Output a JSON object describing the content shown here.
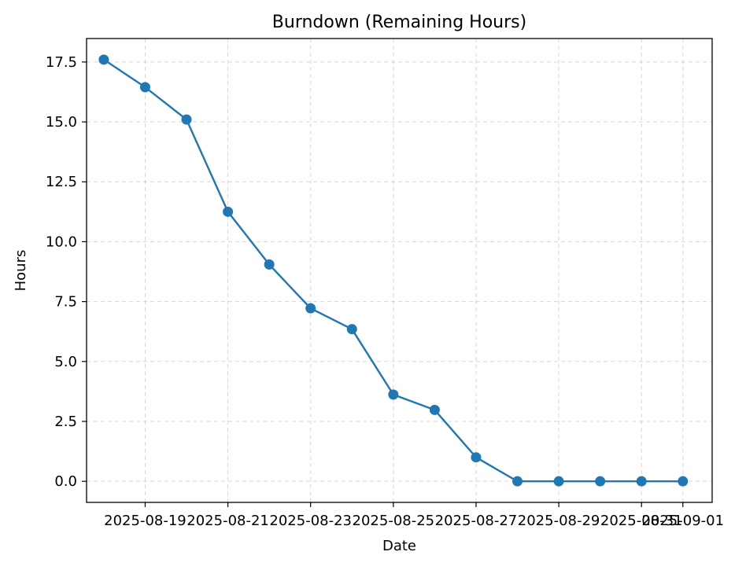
{
  "chart_data": {
    "type": "line",
    "title": "Burndown (Remaining Hours)",
    "xlabel": "Date",
    "ylabel": "Hours",
    "x": [
      "2025-08-18",
      "2025-08-19",
      "2025-08-20",
      "2025-08-21",
      "2025-08-22",
      "2025-08-23",
      "2025-08-24",
      "2025-08-25",
      "2025-08-26",
      "2025-08-27",
      "2025-08-28",
      "2025-08-29",
      "2025-08-30",
      "2025-08-31",
      "2025-09-01"
    ],
    "series": [
      {
        "values": [
          17.6,
          16.45,
          15.1,
          11.25,
          9.05,
          7.22,
          6.35,
          3.62,
          2.98,
          1.0,
          0.0,
          0.0,
          0.0,
          0.0,
          0.0
        ],
        "color": "#1f77b4",
        "marker": "circle"
      }
    ],
    "xticks": [
      "2025-08-19",
      "2025-08-21",
      "2025-08-23",
      "2025-08-25",
      "2025-08-27",
      "2025-08-29",
      "2025-08-31",
      "2025-09-01"
    ],
    "yticks": [
      "0.0",
      "2.5",
      "5.0",
      "7.5",
      "10.0",
      "12.5",
      "15.0",
      "17.5"
    ],
    "ylim": [
      -0.88,
      18.48
    ],
    "xlim": [
      "2025-08-17T14:00",
      "2025-09-01T17:00"
    ],
    "grid": true,
    "grid_style": "dashed"
  }
}
